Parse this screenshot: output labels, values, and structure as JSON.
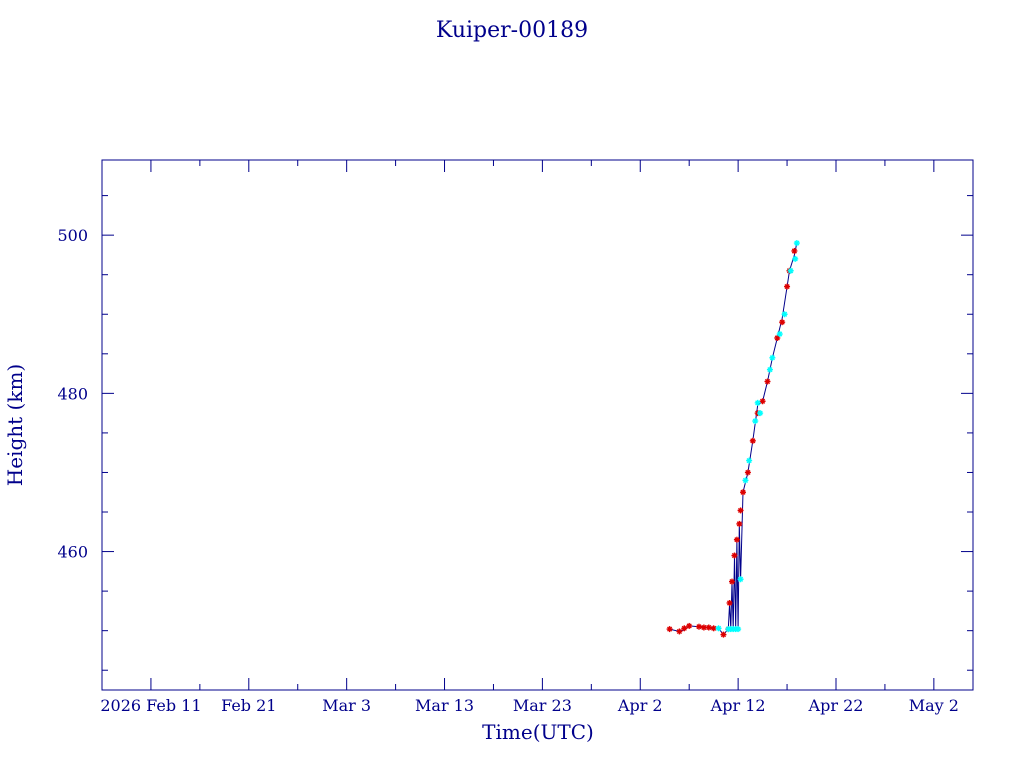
{
  "chart_data": {
    "type": "scatter",
    "title": "Kuiper-00189",
    "xlabel": "Time(UTC)",
    "ylabel": "Height (km)",
    "x_tick_labels": [
      {
        "date": "2026-02-11",
        "label": "2026 Feb 11"
      },
      {
        "date": "2026-02-21",
        "label": "Feb 21"
      },
      {
        "date": "2026-03-03",
        "label": "Mar  3"
      },
      {
        "date": "2026-03-13",
        "label": "Mar 13"
      },
      {
        "date": "2026-03-23",
        "label": "Mar 23"
      },
      {
        "date": "2026-04-02",
        "label": "Apr  2"
      },
      {
        "date": "2026-04-12",
        "label": "Apr 12"
      },
      {
        "date": "2026-04-22",
        "label": "Apr 22"
      },
      {
        "date": "2026-05-02",
        "label": "May  2"
      }
    ],
    "y_ticks": [
      460,
      480,
      500
    ],
    "xlim": [
      "2026-02-06",
      "2026-05-06"
    ],
    "ylim": [
      442.5,
      509.5
    ],
    "grid": false,
    "colors": {
      "axes": "#00008b",
      "line": "#00008b",
      "series_a": "#dd0000",
      "series_b": "#00ffff"
    },
    "line": [
      [
        "2026-04-05T00:00",
        450.2
      ],
      [
        "2026-04-06T00:00",
        449.9
      ],
      [
        "2026-04-06T12:00",
        450.1
      ],
      [
        "2026-04-07T00:00",
        450.6
      ],
      [
        "2026-04-08T00:00",
        450.5
      ],
      [
        "2026-04-09T00:00",
        450.4
      ],
      [
        "2026-04-10T00:00",
        450.3
      ],
      [
        "2026-04-10T12:00",
        449.5
      ],
      [
        "2026-04-11T00:00",
        450.2
      ],
      [
        "2026-04-11T03:00",
        453.5
      ],
      [
        "2026-04-11T06:00",
        450.2
      ],
      [
        "2026-04-11T09:00",
        456.2
      ],
      [
        "2026-04-11T12:00",
        450.2
      ],
      [
        "2026-04-11T15:00",
        459.5
      ],
      [
        "2026-04-11T18:00",
        450.2
      ],
      [
        "2026-04-11T21:00",
        461.5
      ],
      [
        "2026-04-12T00:00",
        450.2
      ],
      [
        "2026-04-12T03:00",
        463.5
      ],
      [
        "2026-04-12T06:00",
        456.5
      ],
      [
        "2026-04-12T12:00",
        467.5
      ],
      [
        "2026-04-13T00:00",
        470.0
      ],
      [
        "2026-04-13T12:00",
        474.0
      ],
      [
        "2026-04-14T00:00",
        478.5
      ],
      [
        "2026-04-14T12:00",
        479.0
      ],
      [
        "2026-04-15T00:00",
        481.5
      ],
      [
        "2026-04-15T12:00",
        484.5
      ],
      [
        "2026-04-16T00:00",
        487.0
      ],
      [
        "2026-04-16T12:00",
        489.5
      ],
      [
        "2026-04-17T00:00",
        493.5
      ],
      [
        "2026-04-17T06:00",
        495.5
      ],
      [
        "2026-04-17T18:00",
        497.5
      ],
      [
        "2026-04-18T00:00",
        499.0
      ]
    ],
    "series": [
      {
        "color": "#dd0000",
        "points": [
          [
            "2026-04-05T00:00",
            450.2
          ],
          [
            "2026-04-06T00:00",
            449.9
          ],
          [
            "2026-04-06T12:00",
            450.3
          ],
          [
            "2026-04-07T00:00",
            450.6
          ],
          [
            "2026-04-08T00:00",
            450.5
          ],
          [
            "2026-04-08T12:00",
            450.4
          ],
          [
            "2026-04-09T00:00",
            450.4
          ],
          [
            "2026-04-09T12:00",
            450.3
          ],
          [
            "2026-04-10T12:00",
            449.5
          ],
          [
            "2026-04-11T00:00",
            450.2
          ],
          [
            "2026-04-11T03:00",
            453.5
          ],
          [
            "2026-04-11T09:00",
            456.2
          ],
          [
            "2026-04-11T15:00",
            459.5
          ],
          [
            "2026-04-11T21:00",
            461.5
          ],
          [
            "2026-04-12T03:00",
            463.5
          ],
          [
            "2026-04-12T06:00",
            465.2
          ],
          [
            "2026-04-12T12:00",
            467.5
          ],
          [
            "2026-04-13T00:00",
            470.0
          ],
          [
            "2026-04-13T12:00",
            474.0
          ],
          [
            "2026-04-14T00:00",
            477.5
          ],
          [
            "2026-04-14T12:00",
            479.0
          ],
          [
            "2026-04-15T00:00",
            481.5
          ],
          [
            "2026-04-16T00:00",
            487.0
          ],
          [
            "2026-04-16T12:00",
            489.0
          ],
          [
            "2026-04-17T00:00",
            493.5
          ],
          [
            "2026-04-17T06:00",
            495.5
          ],
          [
            "2026-04-17T18:00",
            498.0
          ]
        ]
      },
      {
        "color": "#00ffff",
        "points": [
          [
            "2026-04-10T00:00",
            450.3
          ],
          [
            "2026-04-11T00:00",
            450.2
          ],
          [
            "2026-04-11T06:00",
            450.2
          ],
          [
            "2026-04-11T12:00",
            450.2
          ],
          [
            "2026-04-11T18:00",
            450.2
          ],
          [
            "2026-04-12T00:00",
            450.2
          ],
          [
            "2026-04-12T06:00",
            456.5
          ],
          [
            "2026-04-12T18:00",
            469.0
          ],
          [
            "2026-04-13T03:00",
            471.5
          ],
          [
            "2026-04-13T18:00",
            476.5
          ],
          [
            "2026-04-14T00:00",
            478.8
          ],
          [
            "2026-04-14T06:00",
            477.5
          ],
          [
            "2026-04-15T06:00",
            483.0
          ],
          [
            "2026-04-15T12:00",
            484.5
          ],
          [
            "2026-04-16T06:00",
            487.5
          ],
          [
            "2026-04-16T18:00",
            490.0
          ],
          [
            "2026-04-17T09:00",
            495.5
          ],
          [
            "2026-04-17T20:00",
            497.0
          ],
          [
            "2026-04-18T00:00",
            499.0
          ]
        ]
      }
    ]
  }
}
